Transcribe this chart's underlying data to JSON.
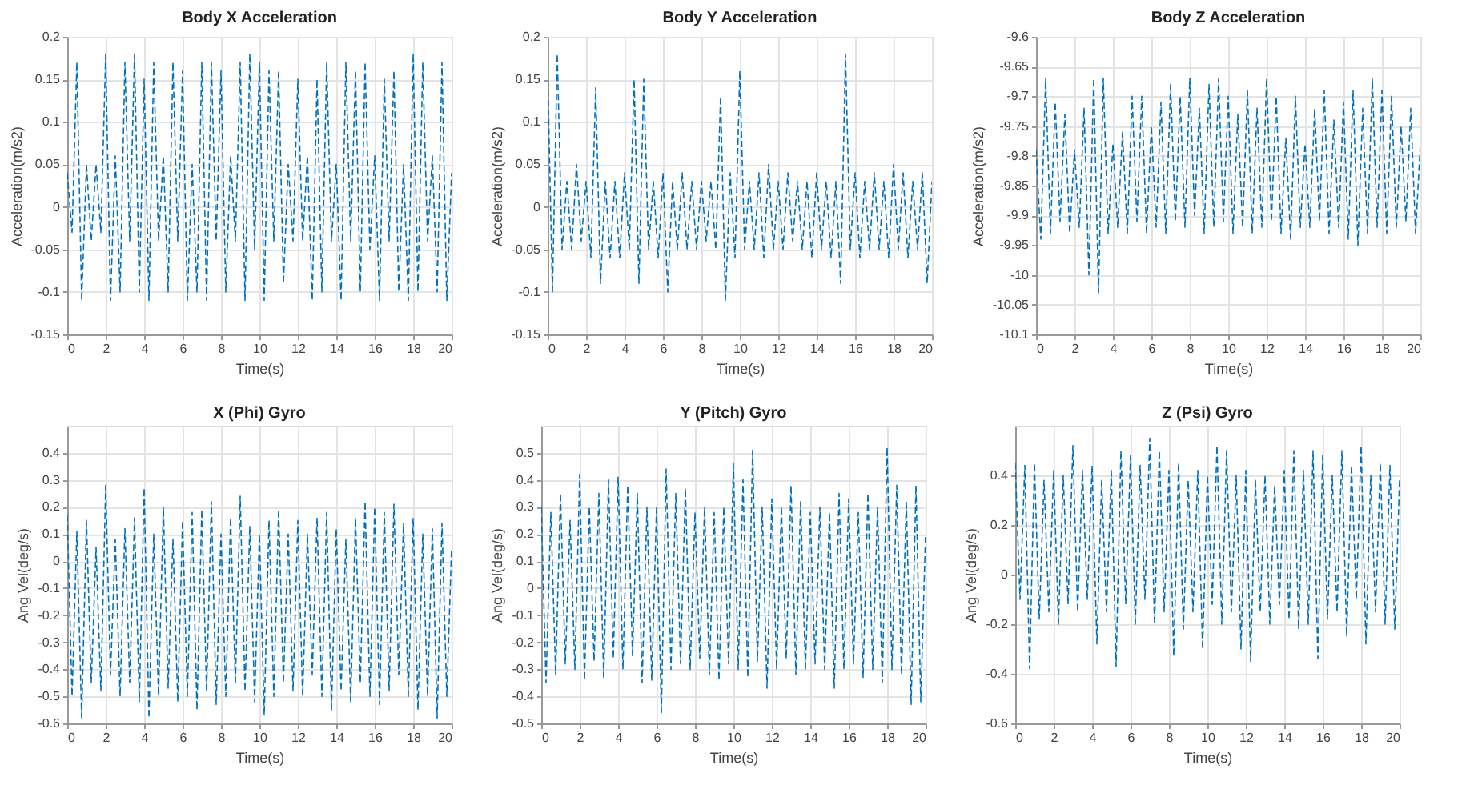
{
  "chart_data": [
    {
      "type": "line",
      "title": "Body X Acceleration",
      "xlabel": "Time(s)",
      "ylabel": "Acceleration(m/s2)",
      "x": [
        0,
        0.25,
        0.5,
        0.75,
        1,
        1.25,
        1.5,
        1.75,
        2,
        2.25,
        2.5,
        2.75,
        3,
        3.25,
        3.5,
        3.75,
        4,
        4.25,
        4.5,
        4.75,
        5,
        5.25,
        5.5,
        5.75,
        6,
        6.25,
        6.5,
        6.75,
        7,
        7.25,
        7.5,
        7.75,
        8,
        8.25,
        8.5,
        8.75,
        9,
        9.25,
        9.5,
        9.75,
        10,
        10.25,
        10.5,
        10.75,
        11,
        11.25,
        11.5,
        11.75,
        12,
        12.25,
        12.5,
        12.75,
        13,
        13.25,
        13.5,
        13.75,
        14,
        14.25,
        14.5,
        14.75,
        15,
        15.25,
        15.5,
        15.75,
        16,
        16.25,
        16.5,
        16.75,
        17,
        17.25,
        17.5,
        17.75,
        18,
        18.25,
        18.5,
        18.75,
        19,
        19.25,
        19.5,
        19.75,
        20
      ],
      "series": [
        {
          "color": "#0072bd",
          "values": [
            0.04,
            -0.03,
            0.17,
            -0.11,
            0.05,
            -0.04,
            0.05,
            -0.03,
            0.18,
            -0.11,
            0.06,
            -0.1,
            0.17,
            -0.04,
            0.18,
            -0.1,
            0.15,
            -0.11,
            0.17,
            -0.04,
            0.06,
            -0.1,
            0.17,
            -0.04,
            0.16,
            -0.11,
            0.05,
            -0.1,
            0.17,
            -0.11,
            0.17,
            -0.04,
            0.16,
            -0.1,
            0.06,
            -0.04,
            0.17,
            -0.11,
            0.18,
            -0.05,
            0.17,
            -0.11,
            0.16,
            -0.04,
            0.16,
            -0.09,
            0.05,
            -0.04,
            0.15,
            -0.04,
            0.06,
            -0.11,
            0.15,
            -0.1,
            0.17,
            -0.04,
            0.05,
            -0.11,
            0.17,
            -0.04,
            0.16,
            -0.1,
            0.17,
            -0.05,
            0.06,
            -0.11,
            0.15,
            -0.04,
            0.16,
            -0.1,
            0.05,
            -0.11,
            0.18,
            -0.1,
            0.17,
            -0.04,
            0.06,
            -0.1,
            0.17,
            -0.11,
            0.04
          ]
        }
      ],
      "xlim": [
        0,
        20
      ],
      "xticks": [
        0,
        2,
        4,
        6,
        8,
        10,
        12,
        14,
        16,
        18,
        20
      ],
      "ylim": [
        -0.15,
        0.2
      ],
      "yticks": [
        -0.15,
        -0.1,
        -0.05,
        0,
        0.05,
        0.1,
        0.15,
        0.2
      ],
      "grid": true,
      "line_style": "dashed"
    },
    {
      "type": "line",
      "title": "Body Y Acceleration",
      "xlabel": "Time(s)",
      "ylabel": "Acceleration(m/s2)",
      "x": [
        0,
        0.25,
        0.5,
        0.75,
        1,
        1.25,
        1.5,
        1.75,
        2,
        2.25,
        2.5,
        2.75,
        3,
        3.25,
        3.5,
        3.75,
        4,
        4.25,
        4.5,
        4.75,
        5,
        5.25,
        5.5,
        5.75,
        6,
        6.25,
        6.5,
        6.75,
        7,
        7.25,
        7.5,
        7.75,
        8,
        8.25,
        8.5,
        8.75,
        9,
        9.25,
        9.5,
        9.75,
        10,
        10.25,
        10.5,
        10.75,
        11,
        11.25,
        11.5,
        11.75,
        12,
        12.25,
        12.5,
        12.75,
        13,
        13.25,
        13.5,
        13.75,
        14,
        14.25,
        14.5,
        14.75,
        15,
        15.25,
        15.5,
        15.75,
        16,
        16.25,
        16.5,
        16.75,
        17,
        17.25,
        17.5,
        17.75,
        18,
        18.25,
        18.5,
        18.75,
        19,
        19.25,
        19.5,
        19.75,
        20
      ],
      "series": [
        {
          "color": "#0072bd",
          "values": [
            0.16,
            -0.1,
            0.18,
            -0.05,
            0.03,
            -0.05,
            0.05,
            -0.04,
            0.03,
            -0.06,
            0.14,
            -0.09,
            0.03,
            -0.06,
            0.03,
            -0.06,
            0.04,
            -0.05,
            0.15,
            -0.09,
            0.15,
            -0.05,
            0.03,
            -0.06,
            0.04,
            -0.1,
            0.03,
            -0.05,
            0.04,
            -0.05,
            0.03,
            -0.05,
            0.03,
            -0.04,
            0.03,
            -0.05,
            0.13,
            -0.11,
            0.04,
            -0.06,
            0.16,
            -0.05,
            0.03,
            -0.05,
            0.04,
            -0.06,
            0.05,
            -0.05,
            0.03,
            -0.05,
            0.04,
            -0.04,
            0.03,
            -0.05,
            0.03,
            -0.06,
            0.04,
            -0.05,
            0.03,
            -0.06,
            0.03,
            -0.09,
            0.18,
            -0.05,
            0.04,
            -0.06,
            0.03,
            -0.05,
            0.04,
            -0.05,
            0.03,
            -0.06,
            0.05,
            -0.05,
            0.04,
            -0.06,
            0.03,
            -0.05,
            0.04,
            -0.09,
            0.03
          ]
        }
      ],
      "xlim": [
        0,
        20
      ],
      "xticks": [
        0,
        2,
        4,
        6,
        8,
        10,
        12,
        14,
        16,
        18,
        20
      ],
      "ylim": [
        -0.15,
        0.2
      ],
      "yticks": [
        -0.15,
        -0.1,
        -0.05,
        0,
        0.05,
        0.1,
        0.15,
        0.2
      ],
      "grid": true,
      "line_style": "dashed"
    },
    {
      "type": "line",
      "title": "Body Z Acceleration",
      "xlabel": "Time(s)",
      "ylabel": "Acceleration(m/s2)",
      "x": [
        0,
        0.25,
        0.5,
        0.75,
        1,
        1.25,
        1.5,
        1.75,
        2,
        2.25,
        2.5,
        2.75,
        3,
        3.25,
        3.5,
        3.75,
        4,
        4.25,
        4.5,
        4.75,
        5,
        5.25,
        5.5,
        5.75,
        6,
        6.25,
        6.5,
        6.75,
        7,
        7.25,
        7.5,
        7.75,
        8,
        8.25,
        8.5,
        8.75,
        9,
        9.25,
        9.5,
        9.75,
        10,
        10.25,
        10.5,
        10.75,
        11,
        11.25,
        11.5,
        11.75,
        12,
        12.25,
        12.5,
        12.75,
        13,
        13.25,
        13.5,
        13.75,
        14,
        14.25,
        14.5,
        14.75,
        15,
        15.25,
        15.5,
        15.75,
        16,
        16.25,
        16.5,
        16.75,
        17,
        17.25,
        17.5,
        17.75,
        18,
        18.25,
        18.5,
        18.75,
        19,
        19.25,
        19.5,
        19.75,
        20
      ],
      "series": [
        {
          "color": "#0072bd",
          "values": [
            -9.79,
            -9.94,
            -9.67,
            -9.93,
            -9.71,
            -9.91,
            -9.73,
            -9.93,
            -9.79,
            -9.92,
            -9.72,
            -10,
            -9.67,
            -10.03,
            -9.67,
            -9.93,
            -9.78,
            -9.92,
            -9.76,
            -9.93,
            -9.7,
            -9.91,
            -9.7,
            -9.93,
            -9.75,
            -9.92,
            -9.71,
            -9.93,
            -9.68,
            -9.91,
            -9.7,
            -9.92,
            -9.67,
            -9.9,
            -9.72,
            -9.93,
            -9.68,
            -9.92,
            -9.67,
            -9.91,
            -9.7,
            -9.93,
            -9.73,
            -9.92,
            -9.69,
            -9.93,
            -9.72,
            -9.92,
            -9.67,
            -9.91,
            -9.7,
            -9.93,
            -9.77,
            -9.94,
            -9.7,
            -9.92,
            -9.78,
            -9.92,
            -9.72,
            -9.91,
            -9.69,
            -9.93,
            -9.74,
            -9.92,
            -9.71,
            -9.94,
            -9.69,
            -9.95,
            -9.72,
            -9.93,
            -9.67,
            -9.92,
            -9.69,
            -9.93,
            -9.7,
            -9.92,
            -9.75,
            -9.91,
            -9.72,
            -9.93,
            -9.78
          ]
        }
      ],
      "xlim": [
        0,
        20
      ],
      "xticks": [
        0,
        2,
        4,
        6,
        8,
        10,
        12,
        14,
        16,
        18,
        20
      ],
      "ylim": [
        -10.1,
        -9.6
      ],
      "yticks": [
        -10.1,
        -10.05,
        -10,
        -9.95,
        -9.9,
        -9.85,
        -9.8,
        -9.75,
        -9.7,
        -9.65,
        -9.6
      ],
      "grid": true,
      "line_style": "dashed"
    },
    {
      "type": "line",
      "title": "X (Phi) Gyro",
      "xlabel": "Time(s)",
      "ylabel": "Ang Vel(deg/s)",
      "x": [
        0,
        0.25,
        0.5,
        0.75,
        1,
        1.25,
        1.5,
        1.75,
        2,
        2.25,
        2.5,
        2.75,
        3,
        3.25,
        3.5,
        3.75,
        4,
        4.25,
        4.5,
        4.75,
        5,
        5.25,
        5.5,
        5.75,
        6,
        6.25,
        6.5,
        6.75,
        7,
        7.25,
        7.5,
        7.75,
        8,
        8.25,
        8.5,
        8.75,
        9,
        9.25,
        9.5,
        9.75,
        10,
        10.25,
        10.5,
        10.75,
        11,
        11.25,
        11.5,
        11.75,
        12,
        12.25,
        12.5,
        12.75,
        13,
        13.25,
        13.5,
        13.75,
        14,
        14.25,
        14.5,
        14.75,
        15,
        15.25,
        15.5,
        15.75,
        16,
        16.25,
        16.5,
        16.75,
        17,
        17.25,
        17.5,
        17.75,
        18,
        18.25,
        18.5,
        18.75,
        19,
        19.25,
        19.5,
        19.75,
        20
      ],
      "series": [
        {
          "color": "#0072bd",
          "values": [
            0.17,
            -0.5,
            0.11,
            -0.58,
            0.15,
            -0.45,
            0.05,
            -0.48,
            0.28,
            -0.42,
            0.08,
            -0.5,
            0.12,
            -0.45,
            0.16,
            -0.52,
            0.27,
            -0.58,
            0.1,
            -0.5,
            0.2,
            -0.47,
            0.08,
            -0.52,
            0.15,
            -0.5,
            0.18,
            -0.55,
            0.19,
            -0.48,
            0.22,
            -0.53,
            0.1,
            -0.5,
            0.16,
            -0.45,
            0.24,
            -0.48,
            0.13,
            -0.52,
            0.1,
            -0.57,
            0.15,
            -0.5,
            0.19,
            -0.45,
            0.1,
            -0.48,
            0.15,
            -0.5,
            0.1,
            -0.42,
            0.16,
            -0.5,
            0.18,
            -0.55,
            0.12,
            -0.48,
            0.08,
            -0.52,
            0.16,
            -0.45,
            0.22,
            -0.5,
            0.2,
            -0.53,
            0.18,
            -0.48,
            0.21,
            -0.42,
            0.14,
            -0.5,
            0.16,
            -0.55,
            0.1,
            -0.5,
            0.12,
            -0.58,
            0.14,
            -0.5,
            0.05
          ]
        }
      ],
      "xlim": [
        0,
        20
      ],
      "xticks": [
        0,
        2,
        4,
        6,
        8,
        10,
        12,
        14,
        16,
        18,
        20
      ],
      "ylim": [
        -0.6,
        0.5
      ],
      "yticks": [
        -0.6,
        -0.5,
        -0.4,
        -0.3,
        -0.2,
        -0.1,
        0,
        0.1,
        0.2,
        0.3,
        0.4
      ],
      "grid": true,
      "line_style": "dashed"
    },
    {
      "type": "line",
      "title": "Y (Pitch) Gyro",
      "xlabel": "Time(s)",
      "ylabel": "Ang Vel(deg/s)",
      "x": [
        0,
        0.25,
        0.5,
        0.75,
        1,
        1.25,
        1.5,
        1.75,
        2,
        2.25,
        2.5,
        2.75,
        3,
        3.25,
        3.5,
        3.75,
        4,
        4.25,
        4.5,
        4.75,
        5,
        5.25,
        5.5,
        5.75,
        6,
        6.25,
        6.5,
        6.75,
        7,
        7.25,
        7.5,
        7.75,
        8,
        8.25,
        8.5,
        8.75,
        9,
        9.25,
        9.5,
        9.75,
        10,
        10.25,
        10.5,
        10.75,
        11,
        11.25,
        11.5,
        11.75,
        12,
        12.25,
        12.5,
        12.75,
        13,
        13.25,
        13.5,
        13.75,
        14,
        14.25,
        14.5,
        14.75,
        15,
        15.25,
        15.5,
        15.75,
        16,
        16.25,
        16.5,
        16.75,
        17,
        17.25,
        17.5,
        17.75,
        18,
        18.25,
        18.5,
        18.75,
        19,
        19.25,
        19.5,
        19.75,
        20
      ],
      "series": [
        {
          "color": "#0072bd",
          "values": [
            0.3,
            -0.35,
            0.28,
            -0.32,
            0.35,
            -0.28,
            0.25,
            -0.3,
            0.42,
            -0.34,
            0.3,
            -0.27,
            0.35,
            -0.33,
            0.4,
            -0.26,
            0.41,
            -0.3,
            0.38,
            -0.25,
            0.35,
            -0.35,
            0.3,
            -0.34,
            0.3,
            -0.46,
            0.44,
            -0.3,
            0.35,
            -0.28,
            0.37,
            -0.3,
            0.28,
            -0.26,
            0.3,
            -0.32,
            0.28,
            -0.34,
            0.3,
            -0.28,
            0.46,
            -0.3,
            0.4,
            -0.33,
            0.51,
            -0.27,
            0.3,
            -0.37,
            0.33,
            -0.3,
            0.3,
            -0.26,
            0.38,
            -0.32,
            0.32,
            -0.3,
            0.28,
            -0.28,
            0.3,
            -0.3,
            0.28,
            -0.37,
            0.35,
            -0.3,
            0.33,
            -0.28,
            0.28,
            -0.33,
            0.35,
            -0.3,
            0.3,
            -0.35,
            0.52,
            -0.3,
            0.38,
            -0.32,
            0.32,
            -0.43,
            0.38,
            -0.42,
            0.2
          ]
        }
      ],
      "xlim": [
        0,
        20
      ],
      "xticks": [
        0,
        2,
        4,
        6,
        8,
        10,
        12,
        14,
        16,
        18,
        20
      ],
      "ylim": [
        -0.5,
        0.6
      ],
      "yticks": [
        -0.5,
        -0.4,
        -0.3,
        -0.2,
        -0.1,
        0,
        0.1,
        0.2,
        0.3,
        0.4,
        0.5
      ],
      "grid": true,
      "line_style": "dashed"
    },
    {
      "type": "line",
      "title": "Z (Psi) Gyro",
      "xlabel": "Time(s)",
      "ylabel": "Ang Vel(deg/s)",
      "x": [
        0,
        0.25,
        0.5,
        0.75,
        1,
        1.25,
        1.5,
        1.75,
        2,
        2.25,
        2.5,
        2.75,
        3,
        3.25,
        3.5,
        3.75,
        4,
        4.25,
        4.5,
        4.75,
        5,
        5.25,
        5.5,
        5.75,
        6,
        6.25,
        6.5,
        6.75,
        7,
        7.25,
        7.5,
        7.75,
        8,
        8.25,
        8.5,
        8.75,
        9,
        9.25,
        9.5,
        9.75,
        10,
        10.25,
        10.5,
        10.75,
        11,
        11.25,
        11.5,
        11.75,
        12,
        12.25,
        12.5,
        12.75,
        13,
        13.25,
        13.5,
        13.75,
        14,
        14.25,
        14.5,
        14.75,
        15,
        15.25,
        15.5,
        15.75,
        16,
        16.25,
        16.5,
        16.75,
        17,
        17.25,
        17.5,
        17.75,
        18,
        18.25,
        18.5,
        18.75,
        19,
        19.25,
        19.5,
        19.75,
        20
      ],
      "series": [
        {
          "color": "#0072bd",
          "values": [
            0.45,
            -0.1,
            0.44,
            -0.38,
            0.45,
            -0.18,
            0.38,
            -0.15,
            0.42,
            -0.2,
            0.4,
            -0.12,
            0.52,
            -0.15,
            0.42,
            -0.1,
            0.44,
            -0.28,
            0.38,
            -0.15,
            0.42,
            -0.37,
            0.5,
            -0.12,
            0.48,
            -0.2,
            0.44,
            -0.1,
            0.55,
            -0.2,
            0.5,
            -0.15,
            0.42,
            -0.33,
            0.45,
            -0.22,
            0.38,
            -0.15,
            0.42,
            -0.3,
            0.4,
            -0.12,
            0.52,
            -0.2,
            0.5,
            -0.15,
            0.4,
            -0.3,
            0.42,
            -0.35,
            0.38,
            -0.15,
            0.4,
            -0.2,
            0.36,
            -0.12,
            0.42,
            -0.18,
            0.5,
            -0.22,
            0.42,
            -0.2,
            0.5,
            -0.34,
            0.48,
            -0.18,
            0.4,
            -0.15,
            0.5,
            -0.25,
            0.44,
            -0.1,
            0.52,
            -0.28,
            0.4,
            -0.15,
            0.45,
            -0.2,
            0.44,
            -0.22,
            0.38
          ]
        }
      ],
      "xlim": [
        0,
        20
      ],
      "xticks": [
        0,
        2,
        4,
        6,
        8,
        10,
        12,
        14,
        16,
        18,
        20
      ],
      "ylim": [
        -0.6,
        0.6
      ],
      "yticks": [
        -0.6,
        -0.4,
        -0.2,
        0,
        0.2,
        0.4
      ],
      "grid": true,
      "line_style": "dashed"
    }
  ]
}
